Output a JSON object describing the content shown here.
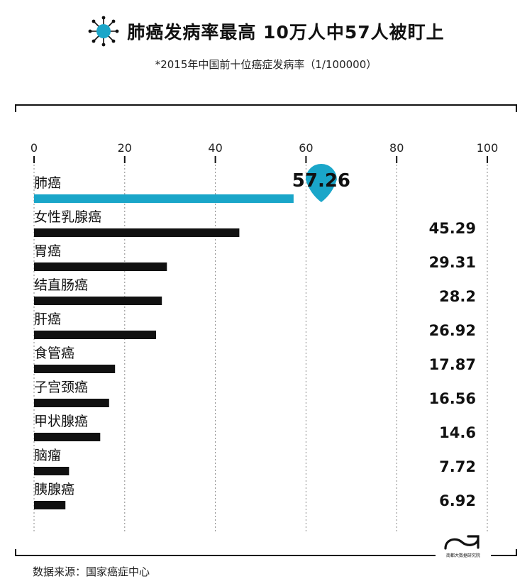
{
  "title": "肺癌发病率最高  10万人中57人被盯上",
  "subtitle": "*2015年中国前十位癌症发病率（1/100000）",
  "source": "数据来源：国家癌症中心",
  "logo_text": "南都大数据研究院",
  "colors": {
    "highlight": "#1aa6c9",
    "bar": "#111111",
    "frame": "#111111"
  },
  "chart_data": {
    "type": "bar",
    "orientation": "horizontal",
    "categories": [
      "肺癌",
      "女性乳腺癌",
      "胃癌",
      "结直肠癌",
      "肝癌",
      "食管癌",
      "子宫颈癌",
      "甲状腺癌",
      "脑瘤",
      "胰腺癌"
    ],
    "values": [
      57.26,
      45.29,
      29.31,
      28.2,
      26.92,
      17.87,
      16.56,
      14.6,
      7.72,
      6.92
    ],
    "value_labels": [
      "57.26",
      "45.29",
      "29.31",
      "28.2",
      "26.92",
      "17.87",
      "16.56",
      "14.6",
      "7.72",
      "6.92"
    ],
    "xlim": [
      0,
      100
    ],
    "ticks": [
      0,
      20,
      40,
      60,
      80,
      100
    ],
    "tick_labels": [
      "0",
      "20",
      "40",
      "60",
      "80",
      "100"
    ],
    "grid": "vertical dashed",
    "highlight_index": 0
  }
}
